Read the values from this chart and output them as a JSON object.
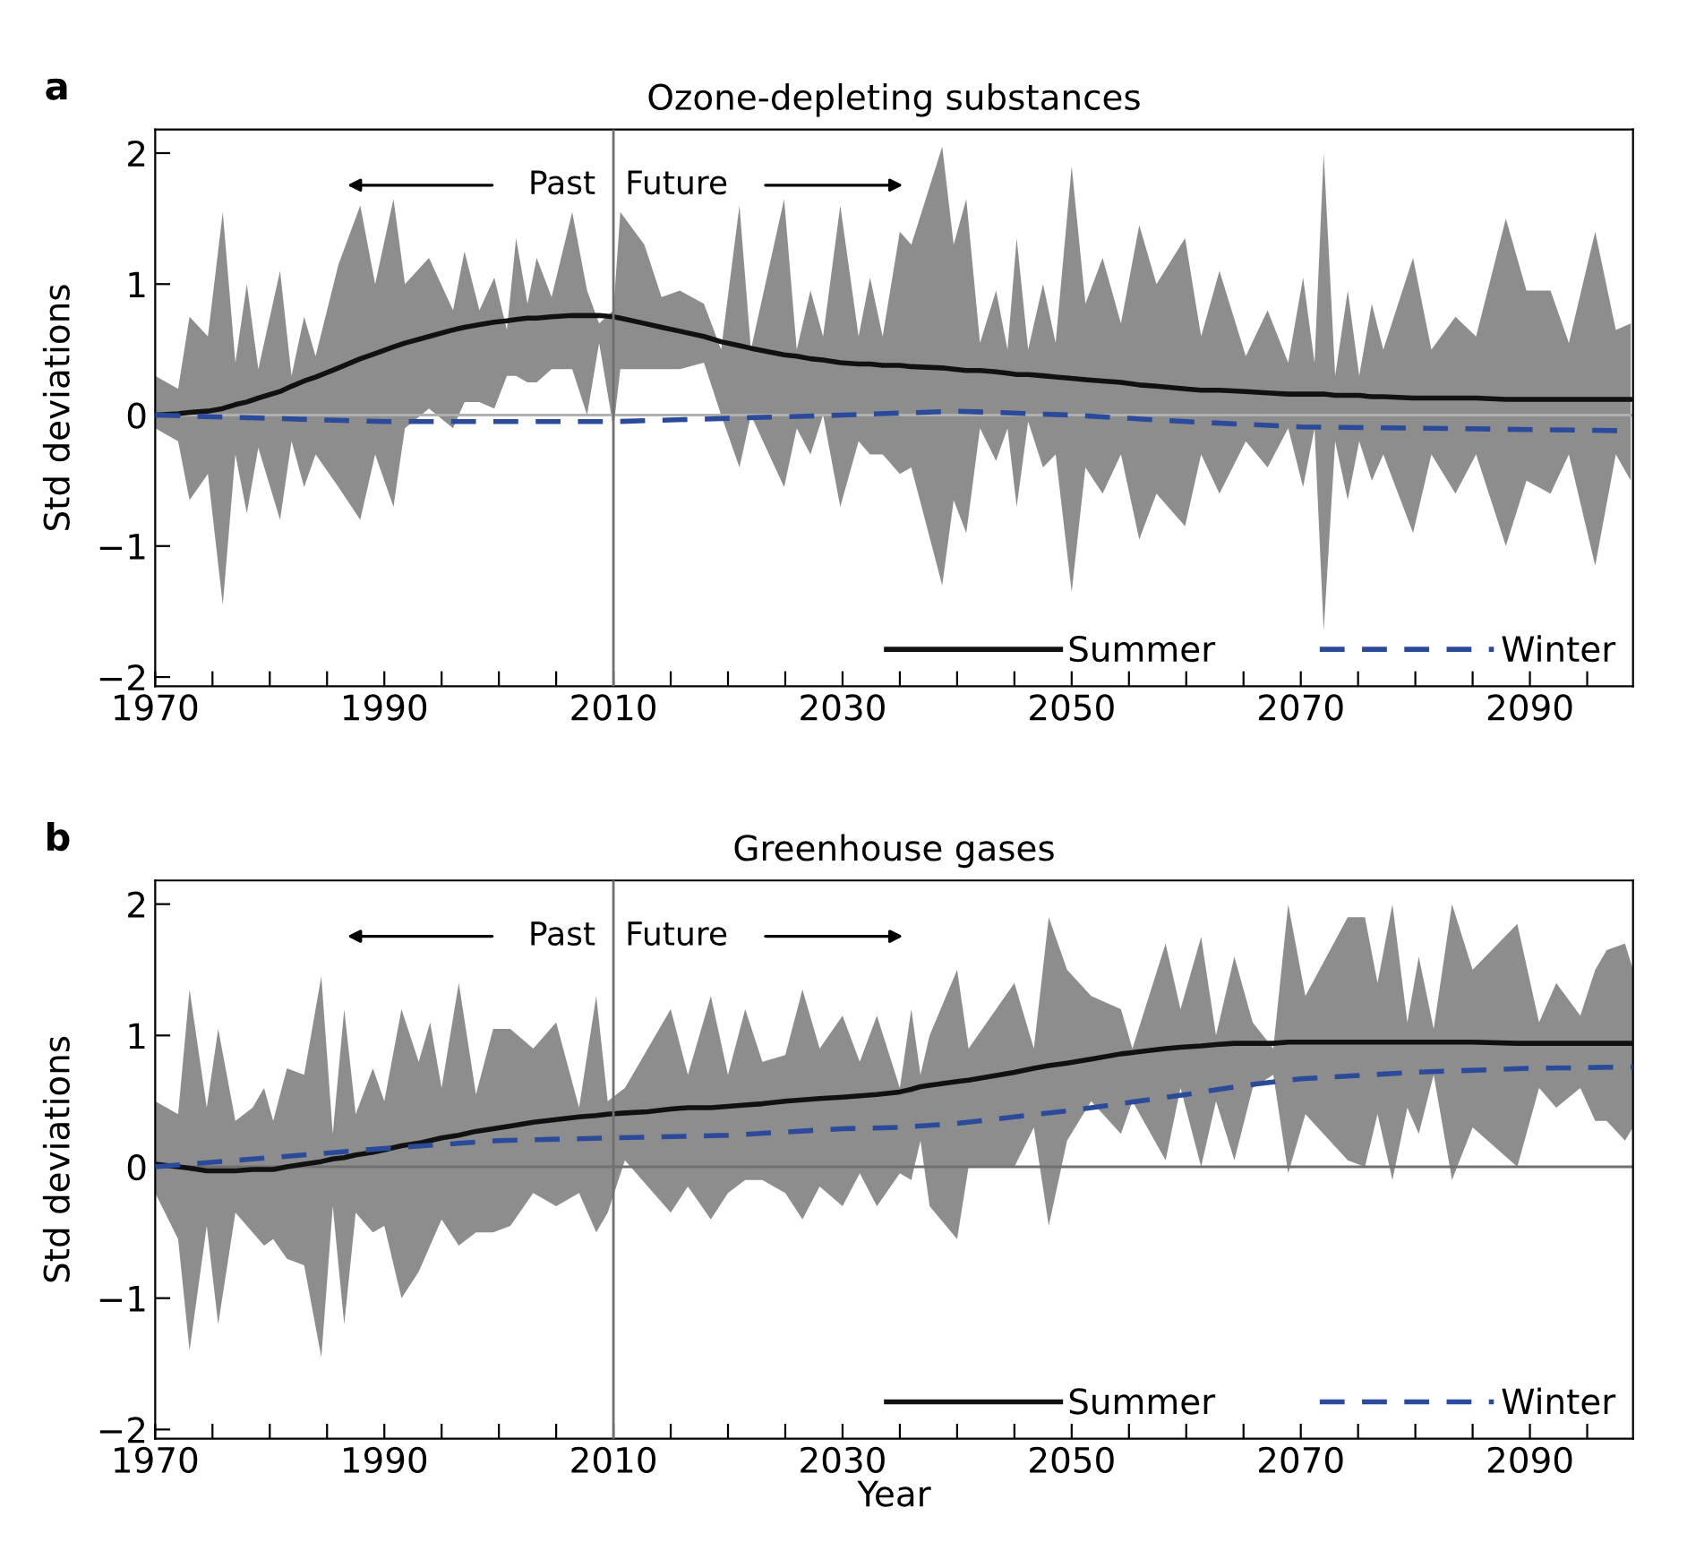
{
  "chart_data": [
    {
      "type": "line",
      "title": "Ozone-depleting substances",
      "ylabel": "Std deviations",
      "annotations": [
        "a",
        "Past",
        "Future"
      ],
      "xlim": [
        1970,
        2099
      ],
      "ylim": [
        -2.07,
        2.18
      ],
      "xticks": [
        1970,
        {
          "value": 1975,
          "label": null
        },
        {
          "value": 1980,
          "label": null
        },
        {
          "value": 1985,
          "label": null
        },
        1990,
        {
          "value": 1995,
          "label": null
        },
        {
          "value": 2000,
          "label": null
        },
        {
          "value": 2005,
          "label": null
        },
        2010,
        {
          "value": 2015,
          "label": null
        },
        {
          "value": 2020,
          "label": null
        },
        {
          "value": 2025,
          "label": null
        },
        2030,
        {
          "value": 2035,
          "label": null
        },
        {
          "value": 2040,
          "label": null
        },
        {
          "value": 2045,
          "label": null
        },
        2050,
        {
          "value": 2055,
          "label": null
        },
        {
          "value": 2060,
          "label": null
        },
        {
          "value": 2065,
          "label": null
        },
        2070,
        {
          "value": 2075,
          "label": null
        },
        {
          "value": 2080,
          "label": null
        },
        {
          "value": 2085,
          "label": null
        },
        2090,
        {
          "value": 2095,
          "label": null
        }
      ],
      "yticks": [
        -2,
        -1,
        0,
        1,
        2
      ],
      "ref_lines": [
        {
          "axis": "x",
          "value": 2010,
          "color": "#707070"
        },
        {
          "axis": "y",
          "value": 0,
          "color": "#b0b0b0"
        }
      ],
      "legend": "bottom right",
      "series": [
        {
          "type": "line",
          "name": "Summer",
          "color": "#111111",
          "line_style": "solid",
          "x": [
            1970,
            1972,
            1973,
            1974.6,
            1975.9,
            1977,
            1978,
            1979,
            1980.9,
            1981.9,
            1983,
            1984,
            1986,
            1987.9,
            1989.2,
            1990.8,
            1991.8,
            1993.9,
            1996,
            1997,
            1998.3,
            1999.6,
            2000.7,
            2001.5,
            2002.5,
            2003.3,
            2004.6,
            2006.4,
            2007.7,
            2008.75,
            2010,
            2010.6,
            2012.7,
            2014.2,
            2015.8,
            2017.9,
            2019.4,
            2021,
            2022,
            2024.9,
            2026,
            2027.2,
            2028.3,
            2029.8,
            2031.4,
            2032.4,
            2033.5,
            2035,
            2036,
            2038.7,
            2039.7,
            2040.8,
            2042,
            2043.4,
            2044.4,
            2045.2,
            2046.2,
            2047.5,
            2048.6,
            2050,
            2051.2,
            2052.7,
            2054.3,
            2055.9,
            2057.4,
            2059.9,
            2061.3,
            2062.9,
            2065.2,
            2067.1,
            2068.9,
            2070.2,
            2071.2,
            2072,
            2073,
            2074.1,
            2075.1,
            2076.2,
            2077.2,
            2079.8,
            2081.4,
            2083.5,
            2085.3,
            2087.9,
            2089.7,
            2091.8,
            2093.4,
            2095.7,
            2097.5,
            2098.8
          ],
          "values": [
            0,
            0.01,
            0.02,
            0.03,
            0.05,
            0.08,
            0.1,
            0.13,
            0.18,
            0.22,
            0.26,
            0.29,
            0.36,
            0.43,
            0.47,
            0.52,
            0.55,
            0.6,
            0.65,
            0.67,
            0.69,
            0.71,
            0.72,
            0.73,
            0.74,
            0.74,
            0.75,
            0.76,
            0.76,
            0.76,
            0.75,
            0.74,
            0.7,
            0.67,
            0.64,
            0.6,
            0.56,
            0.53,
            0.51,
            0.46,
            0.45,
            0.43,
            0.42,
            0.4,
            0.39,
            0.39,
            0.38,
            0.38,
            0.37,
            0.36,
            0.35,
            0.34,
            0.34,
            0.33,
            0.32,
            0.31,
            0.31,
            0.3,
            0.29,
            0.28,
            0.27,
            0.26,
            0.25,
            0.23,
            0.22,
            0.2,
            0.19,
            0.19,
            0.18,
            0.17,
            0.16,
            0.16,
            0.16,
            0.16,
            0.15,
            0.15,
            0.15,
            0.14,
            0.14,
            0.13,
            0.13,
            0.13,
            0.13,
            0.12,
            0.12,
            0.12,
            0.12,
            0.12,
            0.12,
            0.12
          ],
          "upper": [
            0.3,
            0.2,
            0.75,
            0.6,
            1.55,
            0.4,
            1.0,
            0.35,
            1.1,
            0.3,
            0.75,
            0.45,
            1.15,
            1.6,
            1.0,
            1.65,
            1.0,
            1.2,
            0.8,
            1.25,
            0.8,
            1.05,
            0.65,
            1.35,
            0.85,
            1.2,
            0.9,
            1.55,
            0.95,
            0.7,
            0.8,
            1.55,
            1.3,
            0.9,
            0.95,
            0.85,
            0.5,
            1.6,
            0.5,
            1.65,
            0.5,
            0.95,
            0.6,
            1.6,
            0.6,
            1.05,
            0.6,
            1.4,
            1.3,
            2.05,
            1.3,
            1.65,
            0.55,
            0.95,
            0.5,
            1.35,
            0.5,
            1.0,
            0.55,
            1.9,
            0.85,
            1.2,
            0.7,
            1.45,
            1.0,
            1.35,
            0.6,
            1.1,
            0.45,
            0.8,
            0.4,
            1.05,
            0.4,
            2.0,
            0.3,
            0.95,
            0.3,
            0.85,
            0.5,
            1.2,
            0.5,
            0.75,
            0.6,
            1.5,
            0.95,
            0.95,
            0.55,
            1.4,
            0.65,
            0.7
          ],
          "lower": [
            -0.1,
            -0.2,
            -0.65,
            -0.45,
            -1.45,
            -0.3,
            -0.75,
            -0.25,
            -0.8,
            -0.2,
            -0.55,
            -0.3,
            -0.55,
            -0.8,
            -0.3,
            -0.7,
            -0.1,
            0.05,
            -0.1,
            0.1,
            0.1,
            0.05,
            0.3,
            0.3,
            0.25,
            0.25,
            0.35,
            0.35,
            0.0,
            0.55,
            -0.1,
            0.35,
            0.35,
            0.35,
            0.35,
            0.4,
            0.0,
            -0.4,
            0.0,
            -0.55,
            -0.1,
            -0.3,
            0.0,
            -0.7,
            -0.2,
            -0.3,
            -0.3,
            -0.45,
            -0.4,
            -1.3,
            -0.65,
            -0.9,
            -0.1,
            -0.35,
            -0.1,
            -0.7,
            -0.05,
            -0.4,
            -0.3,
            -1.35,
            -0.4,
            -0.6,
            -0.3,
            -0.95,
            -0.6,
            -0.85,
            -0.3,
            -0.6,
            -0.2,
            -0.4,
            -0.1,
            -0.55,
            -0.1,
            -1.65,
            -0.2,
            -0.65,
            -0.2,
            -0.5,
            -0.3,
            -0.9,
            -0.3,
            -0.6,
            -0.3,
            -1.0,
            -0.5,
            -0.6,
            -0.3,
            -1.15,
            -0.3,
            -0.5
          ]
        },
        {
          "type": "line",
          "name": "Winter",
          "color": "#2b4a9a",
          "line_style": "dashed",
          "x": [
            1970,
            1990,
            2010,
            2030,
            2040,
            2050,
            2060,
            2070,
            2080,
            2099
          ],
          "values": [
            0,
            -0.05,
            -0.05,
            0.0,
            0.03,
            0.0,
            -0.05,
            -0.09,
            -0.1,
            -0.12
          ]
        }
      ]
    },
    {
      "type": "line",
      "title": "Greenhouse gases",
      "ylabel": "Std deviations",
      "xlabel": "Year",
      "annotations": [
        "b",
        "Past",
        "Future"
      ],
      "xlim": [
        1970,
        2099
      ],
      "ylim": [
        -2.07,
        2.18
      ],
      "xticks": [
        1970,
        {
          "value": 1975,
          "label": null
        },
        {
          "value": 1980,
          "label": null
        },
        {
          "value": 1985,
          "label": null
        },
        1990,
        {
          "value": 1995,
          "label": null
        },
        {
          "value": 2000,
          "label": null
        },
        {
          "value": 2005,
          "label": null
        },
        2010,
        {
          "value": 2015,
          "label": null
        },
        {
          "value": 2020,
          "label": null
        },
        {
          "value": 2025,
          "label": null
        },
        2030,
        {
          "value": 2035,
          "label": null
        },
        {
          "value": 2040,
          "label": null
        },
        {
          "value": 2045,
          "label": null
        },
        2050,
        {
          "value": 2055,
          "label": null
        },
        {
          "value": 2060,
          "label": null
        },
        {
          "value": 2065,
          "label": null
        },
        2070,
        {
          "value": 2075,
          "label": null
        },
        {
          "value": 2080,
          "label": null
        },
        {
          "value": 2085,
          "label": null
        },
        2090,
        {
          "value": 2095,
          "label": null
        }
      ],
      "yticks": [
        -2,
        -1,
        0,
        1,
        2
      ],
      "ref_lines": [
        {
          "axis": "x",
          "value": 2010,
          "color": "#707070"
        },
        {
          "axis": "y",
          "value": 0,
          "color": "#707070"
        }
      ],
      "legend": "bottom right",
      "series": [
        {
          "type": "line",
          "name": "Summer",
          "color": "#111111",
          "line_style": "solid",
          "x": [
            1970,
            1972,
            1973,
            1974.5,
            1975.5,
            1977,
            1978.5,
            1979.5,
            1980.3,
            1981.5,
            1983,
            1984.5,
            1985.5,
            1986.5,
            1987.5,
            1989,
            1990,
            1991.5,
            1993,
            1994,
            1995,
            1996.5,
            1998,
            1999.5,
            2001,
            2003,
            2005,
            2007,
            2008.5,
            2009.5,
            2011,
            2013,
            2015,
            2016.5,
            2018.5,
            2020,
            2021.5,
            2023,
            2025,
            2026.5,
            2028,
            2030,
            2031.5,
            2033,
            2035,
            2036,
            2036.8,
            2037.6,
            2040,
            2041,
            2045,
            2046.7,
            2048,
            2049.6,
            2051.7,
            2054.3,
            2055.3,
            2058.2,
            2059.5,
            2061.3,
            2062.6,
            2064.2,
            2065.8,
            2067.6,
            2068.9,
            2070.4,
            2074.1,
            2075.6,
            2076.7,
            2078,
            2079.3,
            2080.3,
            2081.6,
            2083.2,
            2085,
            2088.9,
            2090.8,
            2092.3,
            2094.4,
            2095.7,
            2096.7,
            2098.3,
            2099
          ],
          "values": [
            0.02,
            0.0,
            -0.01,
            -0.03,
            -0.03,
            -0.03,
            -0.02,
            -0.02,
            -0.02,
            0.0,
            0.02,
            0.04,
            0.06,
            0.07,
            0.09,
            0.11,
            0.13,
            0.16,
            0.18,
            0.2,
            0.22,
            0.24,
            0.27,
            0.29,
            0.31,
            0.34,
            0.36,
            0.38,
            0.39,
            0.4,
            0.41,
            0.42,
            0.44,
            0.45,
            0.45,
            0.46,
            0.47,
            0.48,
            0.5,
            0.51,
            0.52,
            0.53,
            0.54,
            0.55,
            0.57,
            0.59,
            0.61,
            0.62,
            0.65,
            0.66,
            0.72,
            0.75,
            0.77,
            0.79,
            0.82,
            0.86,
            0.87,
            0.9,
            0.91,
            0.92,
            0.93,
            0.94,
            0.94,
            0.94,
            0.95,
            0.95,
            0.95,
            0.95,
            0.95,
            0.95,
            0.95,
            0.95,
            0.95,
            0.95,
            0.95,
            0.94,
            0.94,
            0.94,
            0.94,
            0.94,
            0.94,
            0.94,
            0.94
          ],
          "upper": [
            0.5,
            0.4,
            1.35,
            0.45,
            1.05,
            0.35,
            0.45,
            0.6,
            0.35,
            0.75,
            0.7,
            1.45,
            0.25,
            1.2,
            0.4,
            0.75,
            0.5,
            1.2,
            0.8,
            1.1,
            0.6,
            1.4,
            0.55,
            1.05,
            1.05,
            0.9,
            1.1,
            0.45,
            1.3,
            0.5,
            0.6,
            0.9,
            1.2,
            0.7,
            1.3,
            0.7,
            1.2,
            0.8,
            0.85,
            1.35,
            0.9,
            1.15,
            0.8,
            1.15,
            0.6,
            1.2,
            0.7,
            1.0,
            1.5,
            0.9,
            1.4,
            0.9,
            1.9,
            1.5,
            1.3,
            1.2,
            0.9,
            1.7,
            1.2,
            1.75,
            1.0,
            1.6,
            1.1,
            0.9,
            2.0,
            1.3,
            1.9,
            1.9,
            1.4,
            2.0,
            1.1,
            1.6,
            1.05,
            2.0,
            1.5,
            1.85,
            1.1,
            1.4,
            1.15,
            1.5,
            1.65,
            1.7,
            1.5
          ],
          "lower": [
            -0.2,
            -0.55,
            -1.4,
            -0.45,
            -1.2,
            -0.35,
            -0.5,
            -0.6,
            -0.55,
            -0.7,
            -0.75,
            -1.45,
            -0.3,
            -1.2,
            -0.35,
            -0.5,
            -0.45,
            -1.0,
            -0.8,
            -0.6,
            -0.4,
            -0.6,
            -0.5,
            -0.5,
            -0.45,
            -0.2,
            -0.3,
            -0.2,
            -0.5,
            -0.35,
            0.05,
            -0.15,
            -0.35,
            -0.15,
            -0.4,
            -0.2,
            -0.1,
            -0.1,
            -0.2,
            -0.4,
            -0.15,
            -0.3,
            -0.05,
            -0.3,
            -0.05,
            -0.1,
            0.2,
            -0.3,
            -0.55,
            0.0,
            0.0,
            0.3,
            -0.45,
            0.2,
            0.5,
            0.25,
            0.5,
            0.05,
            0.6,
            0.0,
            0.5,
            0.05,
            0.6,
            0.7,
            -0.05,
            0.4,
            0.05,
            0.0,
            0.4,
            -0.1,
            0.45,
            0.25,
            0.7,
            -0.1,
            0.3,
            0.0,
            0.6,
            0.45,
            0.6,
            0.35,
            0.35,
            0.2,
            0.3
          ]
        },
        {
          "type": "line",
          "name": "Winter",
          "color": "#2b4a9a",
          "line_style": "dashed",
          "x": [
            1970,
            1980,
            1990,
            2000,
            2010,
            2020,
            2030,
            2035,
            2040,
            2050,
            2060,
            2065,
            2070,
            2080,
            2090,
            2099
          ],
          "values": [
            0,
            0.07,
            0.14,
            0.2,
            0.22,
            0.24,
            0.29,
            0.3,
            0.33,
            0.43,
            0.55,
            0.62,
            0.67,
            0.72,
            0.75,
            0.76
          ]
        }
      ]
    }
  ]
}
